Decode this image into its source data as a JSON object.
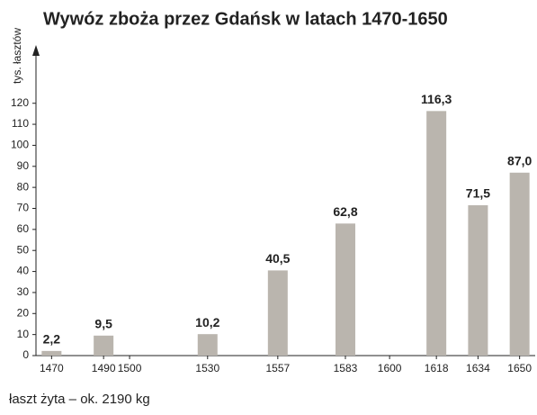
{
  "chart_data": {
    "type": "bar",
    "title": "Wywóz zboża przez Gdańsk w latach 1470-1650",
    "y_label": "tys. łasztów",
    "note": "łaszt żyta – ok. 2190 kg",
    "x": [
      1470,
      1490,
      1530,
      1557,
      1583,
      1618,
      1634,
      1650
    ],
    "values": [
      2.2,
      9.5,
      10.2,
      40.5,
      62.8,
      116.3,
      71.5,
      87.0
    ],
    "value_labels": [
      "2,2",
      "9,5",
      "10,2",
      "40,5",
      "62,8",
      "116,3",
      "71,5",
      "87,0"
    ],
    "color": "#bab5ae",
    "xlim": [
      1464,
      1656
    ],
    "xticks": [
      1470,
      1490,
      1500,
      1530,
      1557,
      1583,
      1600,
      1618,
      1634,
      1650
    ],
    "ylim": [
      0,
      140
    ],
    "yticks": [
      0,
      10,
      20,
      30,
      40,
      50,
      60,
      70,
      80,
      90,
      100,
      110,
      120
    ],
    "grid": false
  }
}
